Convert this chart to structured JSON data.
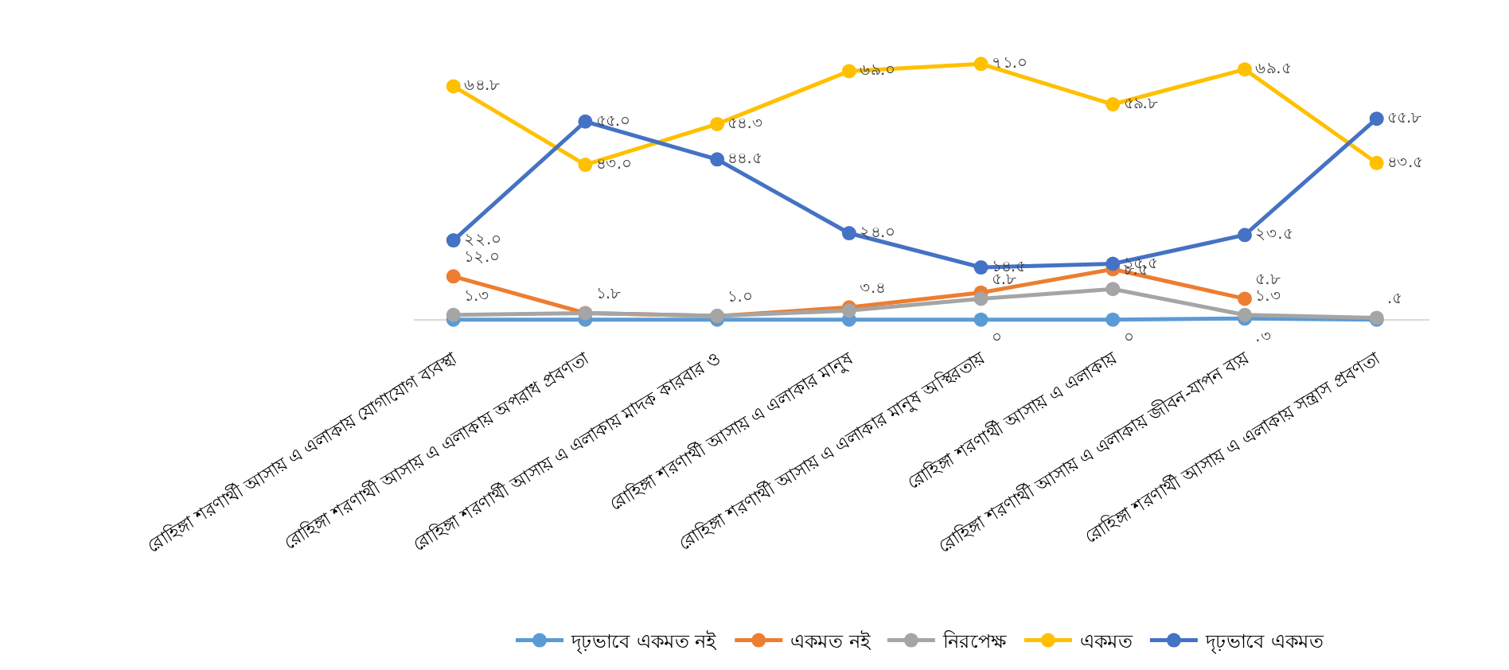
{
  "chart_data": {
    "type": "line",
    "categories": [
      "রোহিঙ্গা শরণার্থী আসায় এ এলাকায় যোগাযোগ ব্যবস্থা",
      "রোহিঙ্গা শরণার্থী আসায় এ এলাকায় অপরাধ প্রবণতা",
      "রোহিঙ্গা শরণার্থী আসায় এ এলাকায় মাদক কারবার ও",
      "রোহিঙ্গা শরণার্থী আসায় এ এলাকার মানুষ",
      "রোহিঙ্গা শরণার্থী আসায় এ এলাকার মানুষ অস্থিরতায়",
      "রোহিঙ্গা শরণার্থী আসায় এ এলাকায়",
      "রোহিঙ্গা শরণার্থী আসায় এ এলাকায় জীবন-যাপন ব্যয়",
      "রোহিঙ্গা শরণার্থী আসায় এ এলাকায় সন্ত্রাস প্রবণতা"
    ],
    "series": [
      {
        "name": "দৃঢ়ভাবে একমত নই",
        "color": "#5b9bd5",
        "values": [
          0,
          0,
          0,
          0,
          0,
          0,
          0.3,
          0
        ],
        "value_labels": [
          null,
          null,
          null,
          null,
          "০",
          "০",
          ".৩",
          null
        ]
      },
      {
        "name": "একমত নই",
        "color": "#ed7d31",
        "values": [
          12.0,
          1.8,
          1.0,
          3.4,
          7.5,
          14.0,
          5.8,
          null
        ],
        "value_labels": [
          "১২.০",
          null,
          null,
          "৩.৪",
          null,
          null,
          "৫.৮",
          null
        ]
      },
      {
        "name": "নিরপেক্ষ",
        "color": "#a5a5a5",
        "values": [
          1.3,
          1.8,
          1.0,
          2.5,
          5.8,
          8.5,
          1.3,
          0.5
        ],
        "value_labels": [
          "১.৩",
          "১.৮",
          "১.০",
          null,
          "৫.৮",
          "৮.৫",
          "১.৩",
          ".৫"
        ]
      },
      {
        "name": "একমত",
        "color": "#ffc000",
        "values": [
          64.8,
          43.0,
          54.3,
          69.0,
          71.0,
          59.8,
          69.5,
          43.5
        ],
        "value_labels": [
          "৬৪.৮",
          "৪৩.০",
          "৫৪.৩",
          "৬৯.০",
          "৭১.০",
          "৫৯.৮",
          "৬৯.৫",
          "৪৩.৫"
        ]
      },
      {
        "name": "দৃঢ়ভাবে একমত",
        "color": "#4472c4",
        "values": [
          22.0,
          55.0,
          44.5,
          24.0,
          14.5,
          15.5,
          23.5,
          55.8
        ],
        "value_labels": [
          "২২.০",
          "৫৫.০",
          "৪৪.৫",
          "২৪.০",
          "১৪.৫",
          "১৫.৫",
          "২৩.৫",
          "৫৫.৮"
        ]
      }
    ],
    "tick_labels": "x",
    "legend": "bottom",
    "marker": "circle",
    "line_style": "solid"
  }
}
